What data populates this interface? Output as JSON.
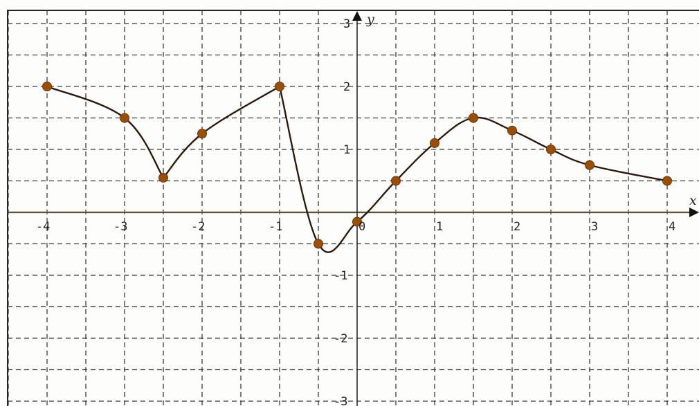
{
  "chart_data": {
    "type": "line",
    "title": "",
    "xlabel": "x",
    "ylabel": "y",
    "xlim": [
      -4.5,
      4.5
    ],
    "ylim": [
      -3,
      3
    ],
    "grid": true,
    "grid_step": 0.5,
    "x_ticks": [
      -4,
      -3,
      -2,
      -1,
      0,
      1,
      2,
      3,
      4
    ],
    "x_tick_labels": [
      "-4",
      "-3",
      "-2",
      "-1",
      "0",
      "1",
      "2",
      "3",
      "4"
    ],
    "y_ticks": [
      3,
      2,
      1,
      -1,
      -2,
      -3
    ],
    "y_tick_labels": [
      "3",
      "2",
      "1",
      "-1",
      "-2",
      "-3"
    ],
    "colors": {
      "curve": "#2b1a10",
      "points": "#9a4e08"
    },
    "series": [
      {
        "x": [
          -4,
          -3,
          -2.5,
          -2,
          -1,
          -0.5,
          0,
          0.5,
          1,
          1.5,
          2,
          2.5,
          3,
          4
        ],
        "y": [
          2.0,
          1.5,
          0.55,
          1.25,
          2.0,
          -0.5,
          -0.15,
          0.5,
          1.1,
          1.5,
          1.3,
          1.0,
          0.75,
          0.5
        ]
      }
    ]
  }
}
